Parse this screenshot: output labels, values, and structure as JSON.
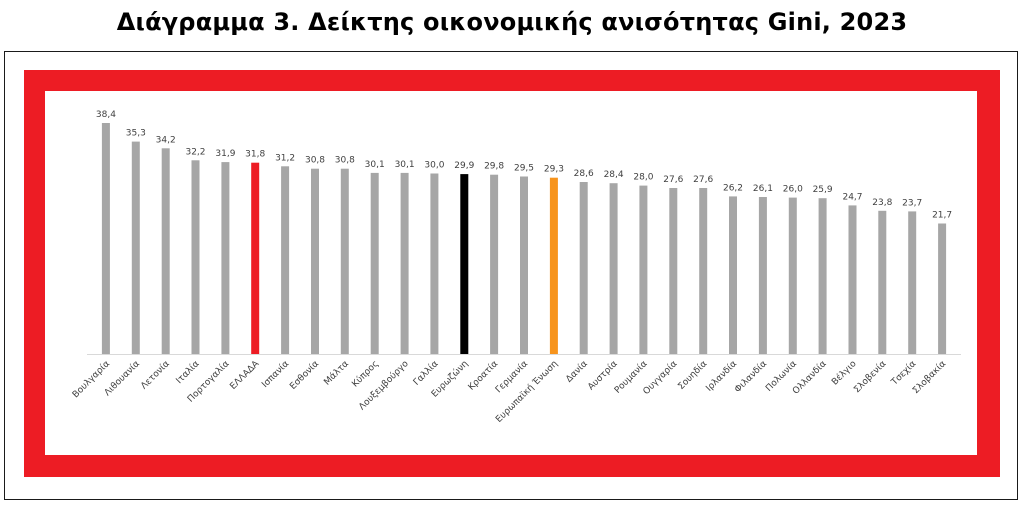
{
  "chart_data": {
    "type": "bar",
    "title": "Διάγραμμα 3. Δείκτης οικονομικής ανισότητας Gini, 2023",
    "xlabel": "",
    "ylabel": "",
    "ylim": [
      0,
      40
    ],
    "grid": false,
    "categories": [
      "Βουλγαρία",
      "Λιθουανία",
      "Λετονία",
      "Ιταλία",
      "Πορτογαλία",
      "ΕΛΛΑΔΑ",
      "Ισπανία",
      "Εσθονία",
      "Μάλτα",
      "Κύπρος",
      "Λουξεμβούργο",
      "Γαλλία",
      "Ευρωζώνη",
      "Κροατία",
      "Γερμανία",
      "Ευρωπαϊκή Ένωση",
      "Δανία",
      "Αυστρία",
      "Ρουμανία",
      "Ουγγαρία",
      "Σουηδία",
      "Ιρλανδία",
      "Φιλανδία",
      "Πολωνία",
      "Ολλανδία",
      "Βέλγιο",
      "Σλοβενία",
      "Τσεχία",
      "Σλοβακία"
    ],
    "values": [
      38.4,
      35.3,
      34.2,
      32.2,
      31.9,
      31.8,
      31.2,
      30.8,
      30.8,
      30.1,
      30.1,
      30.0,
      29.9,
      29.8,
      29.5,
      29.3,
      28.6,
      28.4,
      28.0,
      27.6,
      27.6,
      26.2,
      26.1,
      26.0,
      25.9,
      24.7,
      23.8,
      23.7,
      21.7
    ],
    "value_labels": [
      "38,4",
      "35,3",
      "34,2",
      "32,2",
      "31,9",
      "31,8",
      "31,2",
      "30,8",
      "30,8",
      "30,1",
      "30,1",
      "30,0",
      "29,9",
      "29,8",
      "29,5",
      "29,3",
      "28,6",
      "28,4",
      "28,0",
      "27,6",
      "27,6",
      "26,2",
      "26,1",
      "26,0",
      "25,9",
      "24,7",
      "23,8",
      "23,7",
      "21,7"
    ],
    "bar_colors": [
      "#a6a6a6",
      "#a6a6a6",
      "#a6a6a6",
      "#a6a6a6",
      "#a6a6a6",
      "#ed1c24",
      "#a6a6a6",
      "#a6a6a6",
      "#a6a6a6",
      "#a6a6a6",
      "#a6a6a6",
      "#a6a6a6",
      "#000000",
      "#a6a6a6",
      "#a6a6a6",
      "#f7941d",
      "#a6a6a6",
      "#a6a6a6",
      "#a6a6a6",
      "#a6a6a6",
      "#a6a6a6",
      "#a6a6a6",
      "#a6a6a6",
      "#a6a6a6",
      "#a6a6a6",
      "#a6a6a6",
      "#a6a6a6",
      "#a6a6a6",
      "#a6a6a6"
    ]
  },
  "colors": {
    "frame_red": "#ed1c24",
    "bar_default": "#a6a6a6",
    "greece": "#ed1c24",
    "eurozone": "#000000",
    "eu": "#f7941d",
    "label_text": "#404040"
  }
}
